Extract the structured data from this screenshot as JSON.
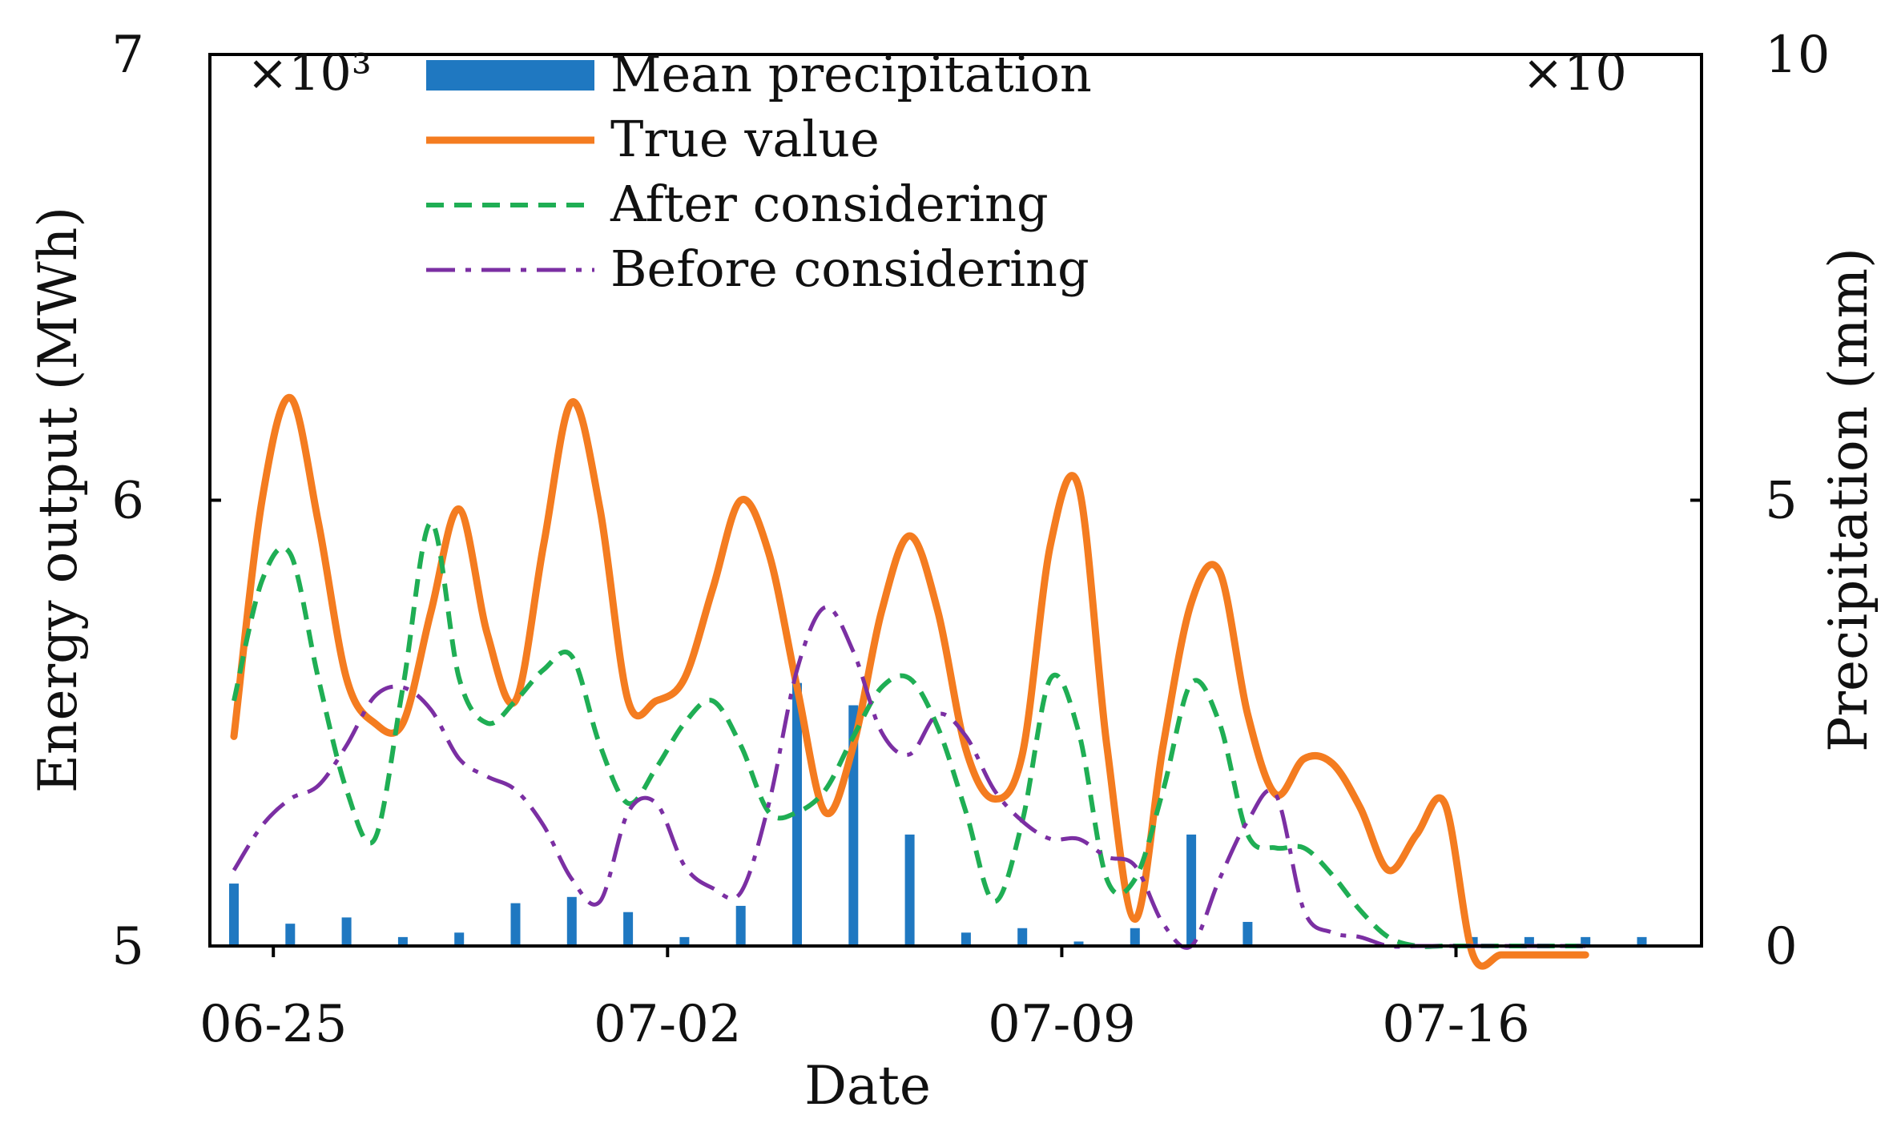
{
  "chart_data": {
    "type": "line",
    "secondary_type": "bar",
    "xlabel": "Date",
    "ylabel": "Energy output (MWh)",
    "y2label": "Precipitation (mm)",
    "y_multiplier": "×10³",
    "y2_multiplier": "×10",
    "xlim": [
      0,
      25.2
    ],
    "ylim": [
      5,
      7
    ],
    "y2lim": [
      0,
      10
    ],
    "x_ticks": [
      {
        "x": 0.7,
        "label": "06-25"
      },
      {
        "x": 7.7,
        "label": "07-02"
      },
      {
        "x": 14.7,
        "label": "07-09"
      },
      {
        "x": 21.7,
        "label": "07-16"
      }
    ],
    "y_ticks": [
      {
        "value": 5,
        "label": "5"
      },
      {
        "value": 6,
        "label": "6"
      },
      {
        "value": 7,
        "label": "7"
      }
    ],
    "y2_ticks": [
      {
        "value": 0,
        "label": "0"
      },
      {
        "value": 5,
        "label": "5"
      },
      {
        "value": 10,
        "label": "10"
      }
    ],
    "legend": {
      "position": "top-left",
      "entries": [
        {
          "label": "Mean precipitation",
          "kind": "bar"
        },
        {
          "label": "True value",
          "kind": "solid"
        },
        {
          "label": "After considering",
          "kind": "dashed"
        },
        {
          "label": "Before considering",
          "kind": "dashdot"
        }
      ]
    },
    "bars": {
      "name": "Mean precipitation",
      "color": "#1f78c1",
      "x": [
        0,
        1,
        2,
        3,
        4,
        5,
        6,
        7,
        8,
        9,
        10,
        11,
        12,
        13,
        14,
        15,
        16,
        17,
        18,
        19,
        20,
        21,
        22,
        23,
        24,
        25
      ],
      "values": [
        0.7,
        0.25,
        0.32,
        0.1,
        0.15,
        0.48,
        0.55,
        0.38,
        0.1,
        0.45,
        2.95,
        2.7,
        1.25,
        0.15,
        0.2,
        0.05,
        0.2,
        1.25,
        0.27,
        0,
        0,
        0,
        0.1,
        0.1,
        0.1,
        0.1
      ]
    },
    "series": [
      {
        "name": "True value",
        "color": "#f47c20",
        "style": "solid",
        "x": [
          0,
          0.5,
          1,
          1.5,
          2,
          2.5,
          3,
          3.5,
          4,
          4.5,
          5,
          5.5,
          6,
          6.5,
          7,
          7.5,
          8,
          8.5,
          9,
          9.5,
          10,
          10.5,
          11,
          11.5,
          12,
          12.5,
          13,
          13.5,
          14,
          14.5,
          15,
          15.5,
          16,
          16.5,
          17,
          17.5,
          18,
          18.5,
          19,
          19.5,
          20,
          20.5,
          21,
          21.5,
          22,
          22.5,
          23,
          23.5,
          24
        ],
        "values": [
          5.47,
          6.0,
          6.23,
          5.95,
          5.6,
          5.5,
          5.5,
          5.75,
          5.98,
          5.7,
          5.55,
          5.9,
          6.22,
          5.98,
          5.55,
          5.55,
          5.6,
          5.8,
          6.0,
          5.88,
          5.58,
          5.3,
          5.45,
          5.75,
          5.92,
          5.75,
          5.44,
          5.33,
          5.43,
          5.9,
          6.03,
          5.45,
          5.06,
          5.45,
          5.77,
          5.84,
          5.52,
          5.34,
          5.42,
          5.41,
          5.31,
          5.17,
          5.25,
          5.32,
          4.98,
          4.98,
          4.98,
          4.98,
          4.98
        ]
      },
      {
        "name": "After considering",
        "color": "#1fae54",
        "style": "dashed",
        "x": [
          0,
          0.5,
          1,
          1.5,
          2,
          2.5,
          3,
          3.5,
          4,
          4.5,
          5,
          5.5,
          6,
          6.5,
          7,
          7.5,
          8,
          8.5,
          9,
          9.5,
          10,
          10.5,
          11,
          11.5,
          12,
          12.5,
          13,
          13.5,
          14,
          14.5,
          15,
          15.5,
          16,
          16.5,
          17,
          17.5,
          18,
          18.5,
          19,
          19.5,
          20,
          20.5,
          21,
          21.5,
          22,
          22.5,
          23,
          23.5,
          24
        ],
        "values": [
          5.55,
          5.82,
          5.88,
          5.6,
          5.35,
          5.24,
          5.58,
          5.95,
          5.6,
          5.5,
          5.55,
          5.62,
          5.65,
          5.45,
          5.32,
          5.4,
          5.5,
          5.55,
          5.45,
          5.3,
          5.3,
          5.35,
          5.47,
          5.58,
          5.6,
          5.49,
          5.3,
          5.1,
          5.28,
          5.6,
          5.48,
          5.15,
          5.15,
          5.35,
          5.59,
          5.5,
          5.25,
          5.22,
          5.22,
          5.16,
          5.08,
          5.02,
          5,
          5,
          5,
          5,
          5,
          5,
          5
        ]
      },
      {
        "name": "Before considering",
        "color": "#7b2fa3",
        "style": "dashdot",
        "x": [
          0,
          0.5,
          1,
          1.5,
          2,
          2.5,
          3,
          3.5,
          4,
          4.5,
          5,
          5.5,
          6,
          6.5,
          7,
          7.5,
          8,
          8.5,
          9,
          9.5,
          10,
          10.5,
          11,
          11.5,
          12,
          12.5,
          13,
          13.5,
          14,
          14.5,
          15,
          15.5,
          16,
          16.5,
          17,
          17.5,
          18,
          18.5,
          19,
          19.5,
          20,
          20.5,
          21,
          21.5,
          22,
          22.5,
          23,
          23.5,
          24
        ],
        "values": [
          5.17,
          5.27,
          5.33,
          5.36,
          5.45,
          5.56,
          5.58,
          5.53,
          5.42,
          5.38,
          5.35,
          5.27,
          5.15,
          5.1,
          5.3,
          5.32,
          5.18,
          5.13,
          5.12,
          5.32,
          5.62,
          5.76,
          5.66,
          5.48,
          5.43,
          5.52,
          5.47,
          5.35,
          5.28,
          5.24,
          5.24,
          5.2,
          5.18,
          5.05,
          5.0,
          5.15,
          5.28,
          5.34,
          5.08,
          5.03,
          5.02,
          5.0,
          5.0,
          5.0,
          5.0,
          5.0,
          5.0,
          5.0,
          5.0
        ]
      }
    ]
  }
}
